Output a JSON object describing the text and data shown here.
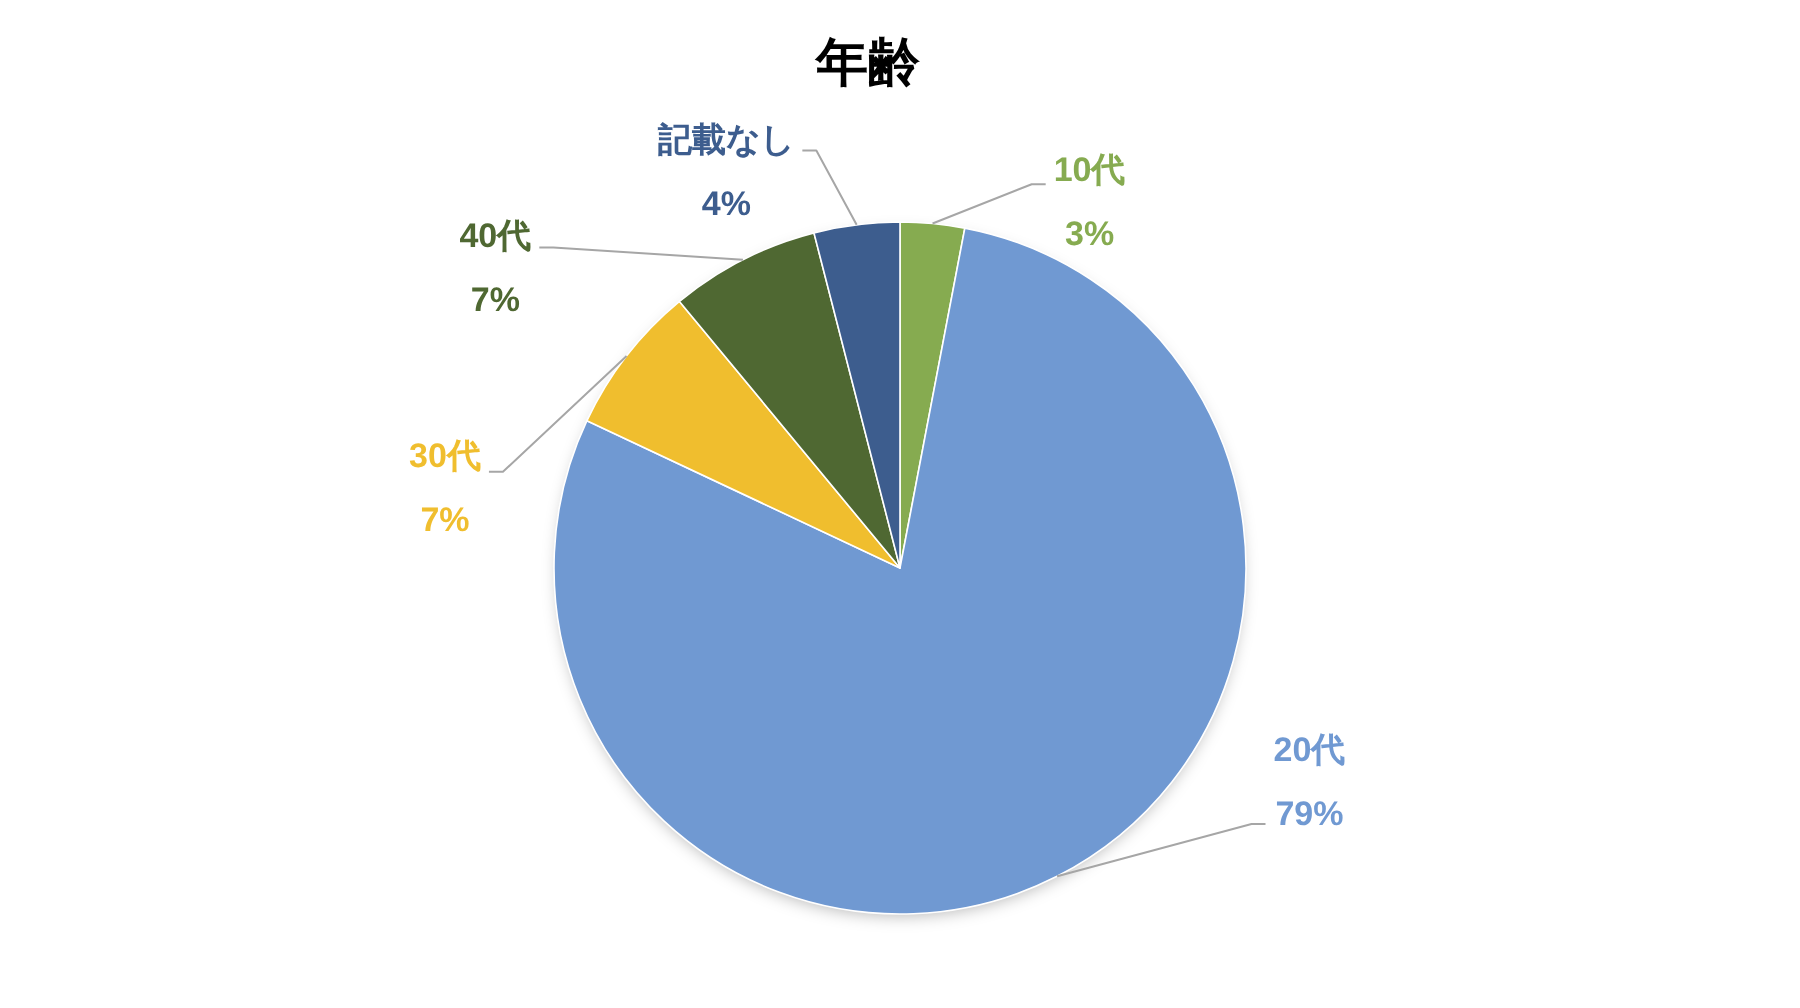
{
  "chart_data": {
    "type": "pie",
    "title": "年齢",
    "categories": [
      "10代",
      "20代",
      "30代",
      "40代",
      "記載なし"
    ],
    "values": [
      3,
      79,
      7,
      7,
      4
    ],
    "value_labels": [
      "3%",
      "79%",
      "7%",
      "7%",
      "4%"
    ],
    "colors": [
      "#86ab50",
      "#7099d2",
      "#f0be2e",
      "#4f6832",
      "#3d5d8e"
    ]
  }
}
